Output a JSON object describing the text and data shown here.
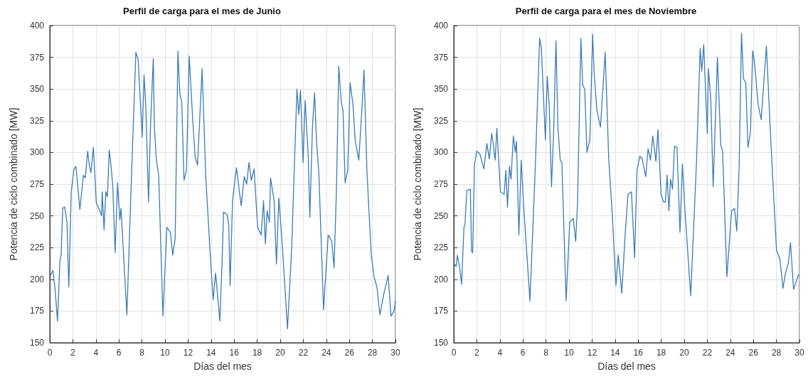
{
  "chart_data": [
    {
      "type": "line",
      "title": "Perfil de carga para el mes de Junio",
      "xlabel": "Días del mes",
      "ylabel": "Potencia de ciclo combinado [MW]",
      "color": "#3b7cb7",
      "marker": "none",
      "grid": true,
      "xlim": [
        0,
        30
      ],
      "xticks": [
        0,
        2,
        4,
        6,
        8,
        10,
        12,
        14,
        16,
        18,
        20,
        22,
        24,
        26,
        28,
        30
      ],
      "ylim": [
        150,
        400
      ],
      "yticks": [
        150,
        175,
        200,
        225,
        250,
        275,
        300,
        325,
        350,
        375,
        400
      ],
      "x": [
        0.06,
        0.27,
        0.47,
        0.67,
        0.88,
        0.98,
        1.12,
        1.29,
        1.49,
        1.65,
        1.86,
        2.1,
        2.27,
        2.61,
        2.92,
        3.08,
        3.29,
        3.43,
        3.57,
        3.78,
        4.04,
        4.35,
        4.49,
        4.55,
        4.71,
        4.86,
        5.0,
        5.16,
        5.33,
        5.47,
        5.67,
        5.88,
        6.08,
        6.18,
        6.69,
        7.1,
        7.47,
        7.67,
        8.02,
        8.18,
        8.33,
        8.57,
        8.73,
        8.98,
        9.08,
        9.24,
        9.45,
        9.82,
        10.16,
        10.47,
        10.67,
        10.88,
        11.12,
        11.29,
        11.45,
        11.65,
        11.86,
        12.1,
        12.41,
        12.61,
        12.82,
        13.22,
        13.53,
        13.94,
        14.18,
        14.39,
        14.76,
        14.96,
        15.08,
        15.39,
        15.53,
        15.65,
        15.86,
        16.2,
        16.61,
        16.88,
        17.08,
        17.29,
        17.49,
        17.73,
        18.04,
        18.35,
        18.55,
        18.71,
        18.86,
        19.06,
        19.16,
        19.47,
        19.67,
        19.88,
        20.12,
        20.63,
        21.0,
        21.2,
        21.45,
        21.61,
        21.76,
        21.98,
        22.16,
        22.43,
        22.57,
        22.8,
        22.98,
        23.14,
        23.35,
        23.76,
        24.16,
        24.47,
        24.67,
        24.88,
        25.08,
        25.29,
        25.45,
        25.63,
        25.86,
        26.06,
        26.31,
        26.51,
        26.82,
        27.08,
        27.27,
        27.53,
        27.9,
        28.14,
        28.39,
        28.65,
        29.0,
        29.37,
        29.61,
        29.88,
        30
      ],
      "values": [
        203,
        207,
        191,
        167,
        215,
        219,
        256,
        257,
        245,
        194,
        269,
        287,
        289,
        255,
        282,
        280,
        301,
        290,
        284,
        304,
        260,
        254,
        250,
        269,
        239,
        269,
        265,
        302,
        288,
        273,
        221,
        276,
        247,
        256,
        172,
        284,
        379,
        373,
        312,
        361,
        337,
        261,
        318,
        374,
        320,
        295,
        282,
        171,
        241,
        237,
        219,
        232,
        380,
        346,
        340,
        278,
        286,
        376,
        325,
        297,
        290,
        366,
        282,
        217,
        184,
        205,
        167,
        215,
        253,
        251,
        243,
        195,
        262,
        288,
        258,
        281,
        275,
        292,
        278,
        287,
        241,
        235,
        262,
        228,
        254,
        245,
        280,
        262,
        212,
        264,
        235,
        161,
        226,
        282,
        350,
        330,
        349,
        292,
        341,
        297,
        249,
        321,
        347,
        310,
        284,
        176,
        235,
        230,
        209,
        271,
        368,
        340,
        333,
        276,
        286,
        355,
        338,
        309,
        294,
        333,
        365,
        284,
        219,
        202,
        194,
        172,
        189,
        203,
        171,
        175,
        183
      ]
    },
    {
      "type": "line",
      "title": "Perfil de carga para el mes de Noviembre",
      "xlabel": "Días del mes",
      "ylabel": "Potencia de ciclo combinado [MW]",
      "color": "#3b7cb7",
      "marker": "none",
      "grid": true,
      "xlim": [
        0,
        30
      ],
      "xticks": [
        0,
        2,
        4,
        6,
        8,
        10,
        12,
        14,
        16,
        18,
        20,
        22,
        24,
        26,
        28,
        30
      ],
      "ylim": [
        150,
        400
      ],
      "yticks": [
        150,
        175,
        200,
        225,
        250,
        275,
        300,
        325,
        350,
        375,
        400
      ],
      "x": [
        0.06,
        0.2,
        0.31,
        0.51,
        0.68,
        0.88,
        0.97,
        1.13,
        1.44,
        1.54,
        1.64,
        1.79,
        1.99,
        2.26,
        2.61,
        2.87,
        3.08,
        3.29,
        3.45,
        3.59,
        3.74,
        4.05,
        4.37,
        4.52,
        4.66,
        4.83,
        4.97,
        5.17,
        5.34,
        5.44,
        5.65,
        5.85,
        6.06,
        6.61,
        7.08,
        7.45,
        7.6,
        7.95,
        8.11,
        8.28,
        8.48,
        8.67,
        8.87,
        9.04,
        9.24,
        9.38,
        9.75,
        10.06,
        10.37,
        10.58,
        10.74,
        11.03,
        11.19,
        11.36,
        11.56,
        11.81,
        12.05,
        12.18,
        12.42,
        12.73,
        13.14,
        13.45,
        13.76,
        14.07,
        14.27,
        14.58,
        14.87,
        15.12,
        15.42,
        15.69,
        15.9,
        16.14,
        16.35,
        16.66,
        16.86,
        17.07,
        17.27,
        17.54,
        17.72,
        17.99,
        18.2,
        18.36,
        18.51,
        18.67,
        18.81,
        18.98,
        19.16,
        19.37,
        19.63,
        19.84,
        20.05,
        20.56,
        21.07,
        21.38,
        21.52,
        21.69,
        22.0,
        22.1,
        22.3,
        22.51,
        22.88,
        23.17,
        23.33,
        23.7,
        24.11,
        24.36,
        24.56,
        24.77,
        24.97,
        25.14,
        25.34,
        25.53,
        25.75,
        25.94,
        26.1,
        26.41,
        26.68,
        27.13,
        27.44,
        27.75,
        28.01,
        28.3,
        28.57,
        28.77,
        29.04,
        29.22,
        29.49,
        29.74,
        29.94
      ],
      "values": [
        212,
        210,
        219,
        209,
        196,
        241,
        243,
        270,
        271,
        222,
        221,
        290,
        301,
        299,
        287,
        307,
        295,
        315,
        305,
        294,
        319,
        269,
        267,
        286,
        257,
        289,
        279,
        313,
        300,
        309,
        235,
        294,
        258,
        183,
        290,
        390,
        382,
        310,
        360,
        337,
        273,
        317,
        388,
        319,
        294,
        292,
        183,
        245,
        248,
        230,
        260,
        390,
        353,
        350,
        300,
        310,
        393,
        363,
        333,
        320,
        379,
        294,
        250,
        195,
        219,
        189,
        235,
        267,
        269,
        217,
        286,
        297,
        295,
        281,
        303,
        294,
        313,
        293,
        318,
        267,
        261,
        261,
        282,
        254,
        279,
        271,
        305,
        304,
        237,
        291,
        256,
        187,
        294,
        382,
        364,
        385,
        315,
        366,
        343,
        273,
        375,
        306,
        301,
        202,
        254,
        256,
        238,
        290,
        394,
        358,
        355,
        304,
        316,
        380,
        371,
        338,
        326,
        384,
        323,
        267,
        223,
        216,
        193,
        204,
        213,
        229,
        192,
        199,
        204
      ]
    }
  ]
}
